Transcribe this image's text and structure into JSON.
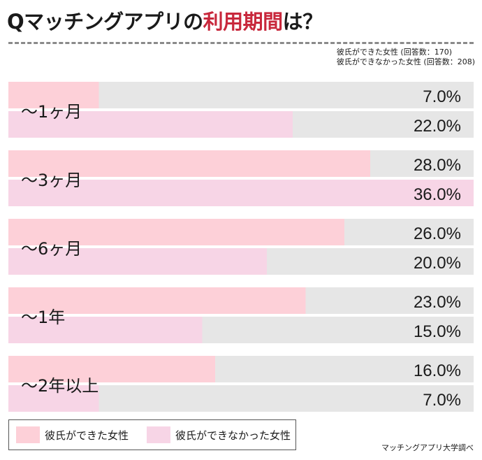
{
  "header": {
    "title_prefix": "Qマッチングアプリの",
    "title_accent": "利用期間",
    "title_suffix": "は？",
    "accent_color": "#c8283c"
  },
  "respondents": {
    "line1": "彼氏ができた女性 (回答数：170)",
    "line2": "彼氏ができなかった女性 (回答数：208)"
  },
  "chart_data": {
    "type": "bar",
    "orientation": "horizontal",
    "categories": [
      "～1ヶ月",
      "～3ヶ月",
      "～6ヶ月",
      "～1年",
      "～2年以上"
    ],
    "series": [
      {
        "name": "彼氏ができた女性",
        "values": [
          7.0,
          28.0,
          26.0,
          23.0,
          16.0
        ],
        "labels": [
          "7.0%",
          "28.0%",
          "26.0%",
          "23.0%",
          "16.0%"
        ],
        "color": "#fdd0d8"
      },
      {
        "name": "彼氏ができなかった女性",
        "values": [
          22.0,
          36.0,
          20.0,
          15.0,
          7.0
        ],
        "labels": [
          "22.0%",
          "36.0%",
          "20.0%",
          "15.0%",
          "7.0%"
        ],
        "color": "#f7d5e6"
      }
    ],
    "xlim": [
      0,
      36
    ],
    "track_color": "#e6e6e6",
    "legend": "bottom-left"
  },
  "legend": {
    "items": [
      {
        "label": "彼氏ができた女性",
        "color": "#fdd0d8"
      },
      {
        "label": "彼氏ができなかった女性",
        "color": "#f7d5e6"
      }
    ]
  },
  "footer": {
    "source": "マッチングアプリ大学調べ"
  }
}
